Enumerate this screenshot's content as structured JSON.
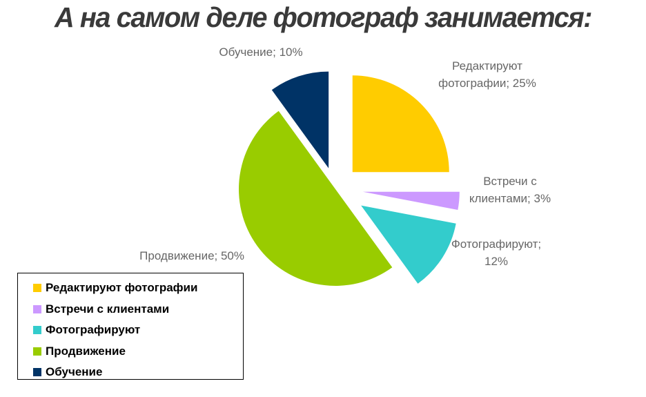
{
  "title": "А на самом деле фотограф занимается:",
  "chart_data": {
    "type": "pie",
    "exploded": true,
    "slices": [
      {
        "name": "Редактируют фотографии",
        "value": 25,
        "color": "#FFCC00",
        "label_lines": [
          "Редактируют",
          "фотографии; 25%"
        ]
      },
      {
        "name": "Встречи с клиентами",
        "value": 3,
        "color": "#CC99FF",
        "label_lines": [
          "Встречи с",
          "клиентами; 3%"
        ]
      },
      {
        "name": "Фотографируют",
        "value": 12,
        "color": "#33CCCC",
        "label_lines": [
          "Фотографируют;",
          "12%"
        ]
      },
      {
        "name": "Продвижение",
        "value": 50,
        "color": "#99CC00",
        "label_lines": [
          "Продвижение; 50%"
        ]
      },
      {
        "name": "Обучение",
        "value": 10,
        "color": "#003366",
        "label_lines": [
          "Обучение; 10%"
        ]
      }
    ],
    "legend_position": "bottom-left"
  }
}
